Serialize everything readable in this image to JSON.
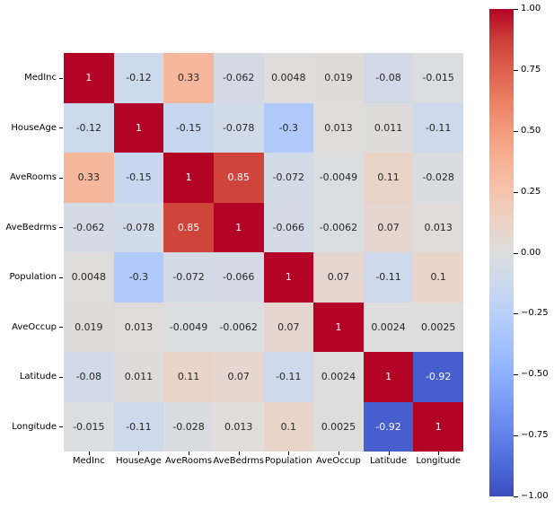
{
  "figure": {
    "background": "#ffffff"
  },
  "chart_data": {
    "type": "heatmap",
    "title": "",
    "xlabel": "",
    "ylabel": "",
    "colormap": "coolwarm",
    "vmin": -1.0,
    "vmax": 1.0,
    "grid": false,
    "legend_position": "colorbar-right",
    "categories": [
      "MedInc",
      "HouseAge",
      "AveRooms",
      "AveBedrms",
      "Population",
      "AveOccup",
      "Latitude",
      "Longitude"
    ],
    "matrix": [
      [
        1,
        -0.12,
        0.33,
        -0.062,
        0.0048,
        0.019,
        -0.08,
        -0.015
      ],
      [
        -0.12,
        1,
        -0.15,
        -0.078,
        -0.3,
        0.013,
        0.011,
        -0.11
      ],
      [
        0.33,
        -0.15,
        1,
        0.85,
        -0.072,
        -0.0049,
        0.11,
        -0.028
      ],
      [
        -0.062,
        -0.078,
        0.85,
        1,
        -0.066,
        -0.0062,
        0.07,
        0.013
      ],
      [
        0.0048,
        -0.3,
        -0.072,
        -0.066,
        1,
        0.07,
        -0.11,
        0.1
      ],
      [
        0.019,
        0.013,
        -0.0049,
        -0.0062,
        0.07,
        1,
        0.0024,
        0.0025
      ],
      [
        -0.08,
        0.011,
        0.11,
        0.07,
        -0.11,
        0.0024,
        1,
        -0.92
      ],
      [
        -0.015,
        -0.11,
        -0.028,
        0.013,
        0.1,
        0.0025,
        -0.92,
        1
      ]
    ],
    "annotation_format": ".2g",
    "colorbar": {
      "tick_values": [
        1.0,
        0.75,
        0.5,
        0.25,
        0.0,
        -0.25,
        -0.5,
        -0.75,
        -1.0
      ],
      "tick_labels": [
        "1.00",
        "0.75",
        "0.50",
        "0.25",
        "0.00",
        "−0.25",
        "−0.50",
        "−0.75",
        "−1.00"
      ]
    },
    "accent_colors": {
      "max_color": "#b40426",
      "mid_color": "#dddddd",
      "min_color": "#3b4cc0",
      "annotation_dark": "#262626",
      "annotation_light": "#ffffff"
    }
  }
}
